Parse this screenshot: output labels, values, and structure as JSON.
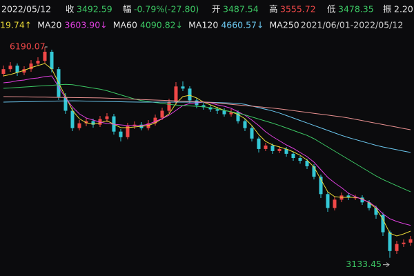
{
  "header": {
    "date": "2022/05/12",
    "close_label": "收",
    "close": "3492.59",
    "change_label": "幅",
    "change": "-0.79%(-27.80)",
    "open_label": "开",
    "open": "3487.54",
    "high_label": "高",
    "high": "3555.72",
    "low_label": "低",
    "low": "3478.35",
    "amp_label": "振",
    "amp": "2.20"
  },
  "chart_data": {
    "type": "candlestick",
    "subtitle": "2021/06/01-2022/05/12",
    "up_color": "#f04848",
    "down_color": "#34c8d6",
    "ylim": [
      2870,
      6420
    ],
    "max_label": 6190.07,
    "min_label": 3133.45,
    "open": [
      5800,
      5868,
      5918,
      5818,
      5868,
      5949,
      5989,
      6120,
      5868,
      5466,
      5265,
      5013,
      5083,
      5114,
      5063,
      5144,
      5184,
      4963,
      4882,
      5043,
      5063,
      5013,
      5083,
      5164,
      5265,
      5385,
      5617,
      5586,
      5415,
      5345,
      5315,
      5285,
      5265,
      5214,
      5244,
      5114,
      5013,
      4862,
      4711,
      4761,
      4681,
      4711,
      4641,
      4580,
      4540,
      4460,
      4309,
      4057,
      3856,
      3977,
      4037,
      4007,
      4007,
      3937,
      3856,
      3756,
      3504,
      3232,
      3333,
      3353
    ],
    "high": [
      5920,
      5970,
      5950,
      5910,
      6000,
      6040,
      6190.07,
      6150,
      5900,
      5520,
      5300,
      5130,
      5160,
      5150,
      5190,
      5230,
      5220,
      5000,
      5090,
      5110,
      5100,
      5130,
      5210,
      5310,
      5440,
      5680,
      5690,
      5620,
      5450,
      5380,
      5350,
      5320,
      5300,
      5290,
      5270,
      5150,
      5040,
      4890,
      4800,
      4790,
      4750,
      4740,
      4670,
      4610,
      4570,
      4490,
      4340,
      4090,
      4020,
      4080,
      4070,
      4050,
      4040,
      3970,
      3890,
      3790,
      3530,
      3380,
      3400,
      3450
    ],
    "low": [
      5760,
      5830,
      5770,
      5780,
      5830,
      5910,
      5950,
      5820,
      5420,
      5220,
      4970,
      4980,
      5040,
      5020,
      5030,
      5100,
      4920,
      4820,
      4850,
      5000,
      4980,
      4980,
      5050,
      5130,
      5230,
      5350,
      5550,
      5380,
      5300,
      5280,
      5250,
      5220,
      5180,
      5180,
      5080,
      4970,
      4820,
      4660,
      4680,
      4640,
      4650,
      4600,
      4540,
      4500,
      4420,
      4270,
      4000,
      3800,
      3820,
      3940,
      3970,
      3970,
      3900,
      3820,
      3700,
      3450,
      3133.45,
      3190,
      3290,
      3310
    ],
    "close": [
      5868,
      5918,
      5818,
      5868,
      5949,
      5989,
      6120,
      5868,
      5466,
      5265,
      5013,
      5083,
      5114,
      5063,
      5144,
      5184,
      4963,
      4882,
      5043,
      5063,
      5013,
      5083,
      5164,
      5265,
      5385,
      5617,
      5586,
      5415,
      5345,
      5315,
      5285,
      5265,
      5214,
      5244,
      5114,
      5013,
      4862,
      4711,
      4761,
      4681,
      4711,
      4641,
      4580,
      4540,
      4460,
      4309,
      4057,
      3856,
      3977,
      4037,
      4007,
      4007,
      3937,
      3856,
      3756,
      3504,
      3232,
      3333,
      3353,
      3403
    ],
    "series": [
      {
        "color": "#e8d838",
        "value_label": "19.74↑",
        "values": [
          5770,
          5790,
          5820,
          5850,
          5890,
          5920,
          5950,
          5870,
          5670,
          5470,
          5270,
          5150,
          5090,
          5070,
          5090,
          5120,
          5070,
          5020,
          5020,
          5030,
          5040,
          5050,
          5090,
          5150,
          5220,
          5370,
          5470,
          5490,
          5450,
          5390,
          5350,
          5310,
          5270,
          5250,
          5210,
          5150,
          5050,
          4920,
          4820,
          4770,
          4740,
          4710,
          4670,
          4620,
          4550,
          4450,
          4270,
          4090,
          4020,
          4010,
          4010,
          4010,
          3990,
          3930,
          3850,
          3690,
          3490,
          3450,
          3480,
          3520
        ]
      },
      {
        "name": "MA20",
        "color": "#e040e0",
        "value_label": "3603.90↓",
        "values": [
          5670,
          5680,
          5700,
          5710,
          5730,
          5740,
          5760,
          5770,
          5610,
          5450,
          5320,
          5220,
          5160,
          5130,
          5100,
          5080,
          5070,
          5060,
          5050,
          5050,
          5050,
          5070,
          5110,
          5150,
          5200,
          5270,
          5340,
          5370,
          5380,
          5390,
          5380,
          5350,
          5330,
          5300,
          5250,
          5200,
          5130,
          5050,
          4960,
          4890,
          4830,
          4770,
          4720,
          4660,
          4600,
          4520,
          4410,
          4300,
          4220,
          4150,
          4070,
          4020,
          3980,
          3940,
          3870,
          3770,
          3700,
          3660,
          3630,
          3604
        ]
      },
      {
        "name": "MA60",
        "color": "#3cc864",
        "value_label": "4090.82↓",
        "values": [
          5590,
          5595,
          5603,
          5609,
          5615,
          5622,
          5628,
          5634,
          5641,
          5647,
          5642,
          5626,
          5610,
          5594,
          5578,
          5555,
          5525,
          5495,
          5465,
          5435,
          5413,
          5399,
          5385,
          5371,
          5357,
          5347,
          5341,
          5335,
          5329,
          5323,
          5310,
          5290,
          5270,
          5250,
          5230,
          5205,
          5175,
          5145,
          5115,
          5085,
          5052,
          5016,
          4980,
          4944,
          4908,
          4860,
          4800,
          4740,
          4680,
          4620,
          4560,
          4500,
          4440,
          4380,
          4320,
          4268,
          4223,
          4178,
          4134,
          4091
        ]
      },
      {
        "name": "MA120",
        "color": "#6cc8f0",
        "value_label": "4660.57↓",
        "values": [
          5390,
          5392,
          5394,
          5396,
          5398,
          5400,
          5402,
          5404,
          5406,
          5408,
          5409,
          5407,
          5405,
          5403,
          5401,
          5399,
          5397,
          5395,
          5393,
          5391,
          5390,
          5390,
          5390,
          5390,
          5390,
          5390,
          5390,
          5390,
          5390,
          5390,
          5388,
          5384,
          5380,
          5376,
          5372,
          5358,
          5334,
          5310,
          5286,
          5262,
          5232,
          5196,
          5160,
          5124,
          5088,
          5052,
          5016,
          4980,
          4944,
          4908,
          4876,
          4848,
          4820,
          4792,
          4764,
          4740,
          4720,
          4700,
          4680,
          4661
        ]
      },
      {
        "name": "MA250",
        "color": "#e89090",
        "values": [
          5470,
          5469,
          5467,
          5466,
          5464,
          5463,
          5462,
          5460,
          5459,
          5458,
          5456,
          5455,
          5454,
          5452,
          5451,
          5448,
          5444,
          5440,
          5436,
          5432,
          5428,
          5424,
          5420,
          5416,
          5412,
          5408,
          5404,
          5400,
          5396,
          5392,
          5385,
          5376,
          5367,
          5358,
          5349,
          5340,
          5331,
          5322,
          5313,
          5304,
          5293,
          5280,
          5267,
          5254,
          5241,
          5228,
          5215,
          5202,
          5189,
          5176,
          5160,
          5141,
          5122,
          5103,
          5084,
          5065,
          5046,
          5027,
          5008,
          4990
        ]
      }
    ]
  }
}
